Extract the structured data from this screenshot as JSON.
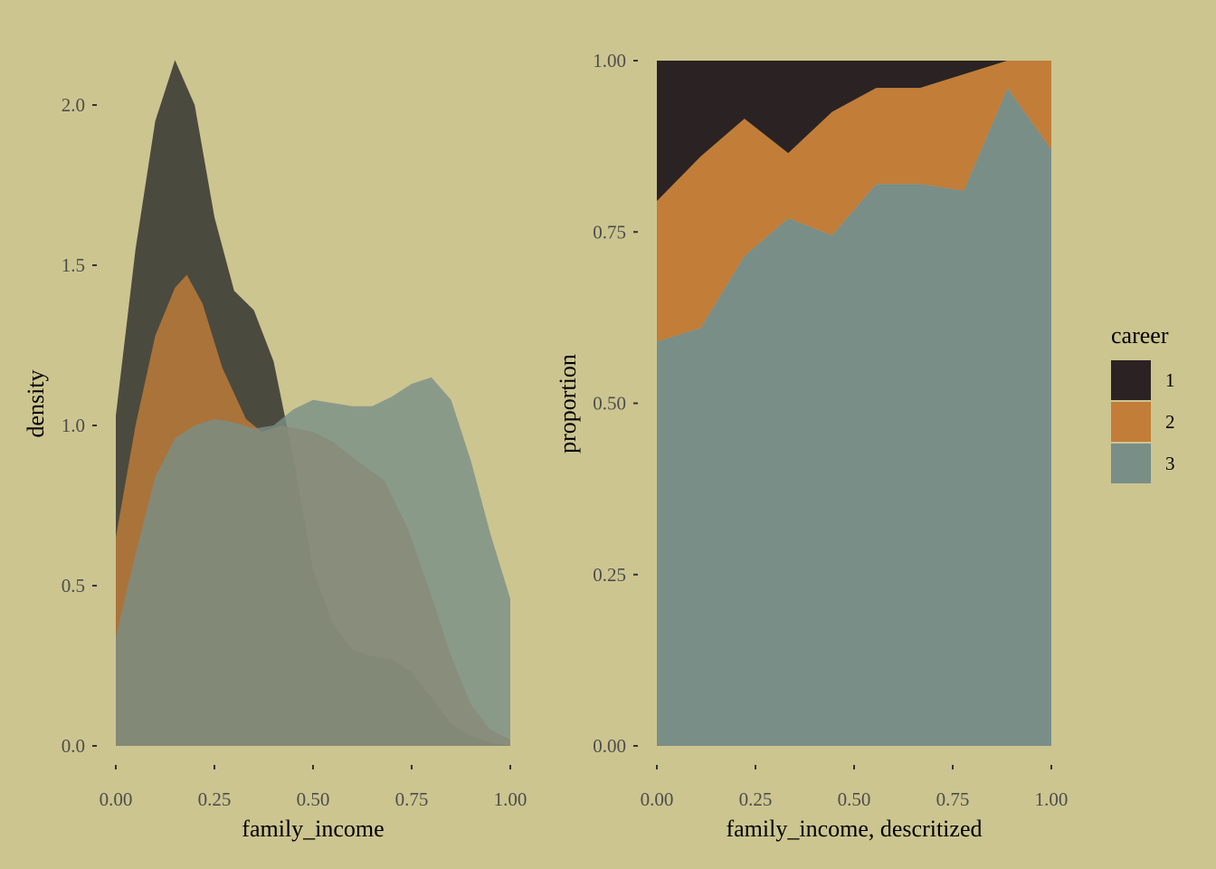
{
  "chart_data": [
    {
      "type": "area",
      "variant": "density",
      "xlabel": "family_income",
      "ylabel": "density",
      "xlim": [
        0,
        1
      ],
      "ylim": [
        0,
        2.2
      ],
      "x_ticks": [
        "0.00",
        "0.25",
        "0.50",
        "0.75",
        "1.00"
      ],
      "y_ticks": [
        "0.0",
        "0.5",
        "1.0",
        "1.5",
        "2.0"
      ],
      "grid": false,
      "series": [
        {
          "name": "1",
          "color": "#2B2B2B",
          "points": [
            [
              0.0,
              1.03
            ],
            [
              0.05,
              1.55
            ],
            [
              0.1,
              1.95
            ],
            [
              0.15,
              2.14
            ],
            [
              0.2,
              2.0
            ],
            [
              0.25,
              1.65
            ],
            [
              0.3,
              1.42
            ],
            [
              0.35,
              1.36
            ],
            [
              0.4,
              1.2
            ],
            [
              0.45,
              0.9
            ],
            [
              0.5,
              0.55
            ],
            [
              0.55,
              0.38
            ],
            [
              0.6,
              0.3
            ],
            [
              0.65,
              0.28
            ],
            [
              0.7,
              0.27
            ],
            [
              0.75,
              0.23
            ],
            [
              0.8,
              0.15
            ],
            [
              0.85,
              0.07
            ],
            [
              0.9,
              0.03
            ],
            [
              0.95,
              0.01
            ],
            [
              1.0,
              0.0
            ]
          ]
        },
        {
          "name": "2",
          "color": "#C27D38",
          "points": [
            [
              0.0,
              0.65
            ],
            [
              0.05,
              1.0
            ],
            [
              0.1,
              1.28
            ],
            [
              0.15,
              1.43
            ],
            [
              0.18,
              1.47
            ],
            [
              0.22,
              1.38
            ],
            [
              0.27,
              1.18
            ],
            [
              0.33,
              1.02
            ],
            [
              0.37,
              0.98
            ],
            [
              0.42,
              1.0
            ],
            [
              0.5,
              0.98
            ],
            [
              0.55,
              0.95
            ],
            [
              0.6,
              0.9
            ],
            [
              0.68,
              0.83
            ],
            [
              0.74,
              0.68
            ],
            [
              0.8,
              0.47
            ],
            [
              0.85,
              0.28
            ],
            [
              0.9,
              0.13
            ],
            [
              0.95,
              0.05
            ],
            [
              1.0,
              0.02
            ]
          ]
        },
        {
          "name": "3",
          "color": "#798E87",
          "points": [
            [
              0.0,
              0.34
            ],
            [
              0.05,
              0.6
            ],
            [
              0.1,
              0.84
            ],
            [
              0.15,
              0.96
            ],
            [
              0.2,
              1.0
            ],
            [
              0.25,
              1.02
            ],
            [
              0.3,
              1.01
            ],
            [
              0.35,
              0.99
            ],
            [
              0.4,
              1.0
            ],
            [
              0.45,
              1.05
            ],
            [
              0.5,
              1.08
            ],
            [
              0.55,
              1.07
            ],
            [
              0.6,
              1.06
            ],
            [
              0.65,
              1.06
            ],
            [
              0.7,
              1.09
            ],
            [
              0.75,
              1.13
            ],
            [
              0.8,
              1.15
            ],
            [
              0.85,
              1.08
            ],
            [
              0.9,
              0.89
            ],
            [
              0.95,
              0.66
            ],
            [
              1.0,
              0.46
            ]
          ]
        }
      ]
    },
    {
      "type": "area",
      "variant": "stacked-proportion",
      "xlabel": "family_income, descritized",
      "ylabel": "proportion",
      "xlim": [
        0,
        1
      ],
      "ylim": [
        0,
        1
      ],
      "x_ticks": [
        "0.00",
        "0.25",
        "0.50",
        "0.75",
        "1.00"
      ],
      "y_ticks": [
        "0.00",
        "0.25",
        "0.50",
        "0.75",
        "1.00"
      ],
      "grid": false,
      "x": [
        0.0,
        0.111,
        0.222,
        0.333,
        0.444,
        0.556,
        0.667,
        0.778,
        0.889,
        1.0
      ],
      "series": [
        {
          "name": "1",
          "color": "#2B2323",
          "values": [
            0.205,
            0.14,
            0.085,
            0.135,
            0.075,
            0.04,
            0.04,
            0.02,
            0.0,
            0.0
          ]
        },
        {
          "name": "2",
          "color": "#C27D38",
          "values": [
            0.205,
            0.25,
            0.2,
            0.095,
            0.18,
            0.14,
            0.14,
            0.17,
            0.04,
            0.13
          ]
        },
        {
          "name": "3",
          "color": "#798E87",
          "values": [
            0.59,
            0.61,
            0.715,
            0.77,
            0.745,
            0.82,
            0.82,
            0.81,
            0.96,
            0.87
          ]
        }
      ]
    }
  ],
  "legend": {
    "title": "career",
    "placement": "right",
    "items": [
      {
        "label": "1",
        "color": "#2B2323"
      },
      {
        "label": "2",
        "color": "#C27D38"
      },
      {
        "label": "3",
        "color": "#798E87"
      }
    ]
  }
}
